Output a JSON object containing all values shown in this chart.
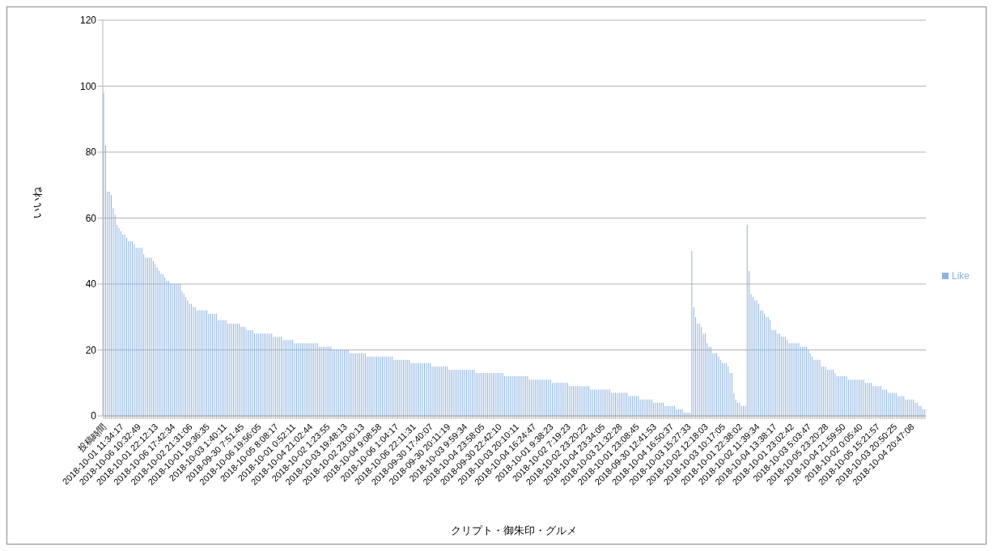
{
  "chart_data": {
    "type": "bar",
    "xlabel": "クリプト・御朱印・グルメ",
    "ylabel": "いいね",
    "legend": "right",
    "grid": "y",
    "ylim": [
      0,
      120
    ],
    "yticks": [
      0,
      20,
      40,
      60,
      80,
      100,
      120
    ],
    "categories": [
      "投稿時間",
      null,
      null,
      null,
      null,
      null,
      null,
      null,
      null,
      "2018-10-01 11:34:17",
      null,
      null,
      null,
      null,
      null,
      null,
      null,
      null,
      "2018-10-06 10:32:49",
      null,
      null,
      null,
      null,
      null,
      null,
      null,
      null,
      "2018-10-01 22:12:13",
      null,
      null,
      null,
      null,
      null,
      null,
      null,
      null,
      "2018-10-06 17:42:34",
      null,
      null,
      null,
      null,
      null,
      null,
      null,
      null,
      "2018-10-02 21:31:06",
      null,
      null,
      null,
      null,
      null,
      null,
      null,
      null,
      "2018-10-01 19:36:35",
      null,
      null,
      null,
      null,
      null,
      null,
      null,
      null,
      "2018-10-03 1:40:11",
      null,
      null,
      null,
      null,
      null,
      null,
      null,
      null,
      "2018-09-30 7:51:45",
      null,
      null,
      null,
      null,
      null,
      null,
      null,
      null,
      "2018-10-06 19:56:05",
      null,
      null,
      null,
      null,
      null,
      null,
      null,
      null,
      "2018-10-05 8:08:17",
      null,
      null,
      null,
      null,
      null,
      null,
      null,
      null,
      "2018-10-01 0:52:11",
      null,
      null,
      null,
      null,
      null,
      null,
      null,
      null,
      "2018-10-04 21:02:44",
      null,
      null,
      null,
      null,
      null,
      null,
      null,
      null,
      "2018-10-02 1:23:55",
      null,
      null,
      null,
      null,
      null,
      null,
      null,
      null,
      "2018-10-03 19:48:13",
      null,
      null,
      null,
      null,
      null,
      null,
      null,
      null,
      "2018-10-02 23:00:13",
      null,
      null,
      null,
      null,
      null,
      null,
      null,
      null,
      "2018-10-04 9:08:58",
      null,
      null,
      null,
      null,
      null,
      null,
      null,
      null,
      "2018-10-06 1:04:17",
      null,
      null,
      null,
      null,
      null,
      null,
      null,
      null,
      "2018-10-06 22:11:31",
      null,
      null,
      null,
      null,
      null,
      null,
      null,
      null,
      "2018-09-30 17:40:07",
      null,
      null,
      null,
      null,
      null,
      null,
      null,
      null,
      "2018-09-30 20:11:19",
      null,
      null,
      null,
      null,
      null,
      null,
      null,
      null,
      "2018-10-03 9:59:34",
      null,
      null,
      null,
      null,
      null,
      null,
      null,
      null,
      "2018-10-04 23:58:05",
      null,
      null,
      null,
      null,
      null,
      null,
      null,
      null,
      "2018-09-30 22:42:10",
      null,
      null,
      null,
      null,
      null,
      null,
      null,
      null,
      "2018-10-03 20:10:11",
      null,
      null,
      null,
      null,
      null,
      null,
      null,
      null,
      "2018-10-04 16:24:47",
      null,
      null,
      null,
      null,
      null,
      null,
      null,
      null,
      "2018-10-01 9:38:23",
      null,
      null,
      null,
      null,
      null,
      null,
      null,
      null,
      "2018-10-02 7:19:23",
      null,
      null,
      null,
      null,
      null,
      null,
      null,
      null,
      "2018-10-02 23:20:22",
      null,
      null,
      null,
      null,
      null,
      null,
      null,
      null,
      "2018-10-04 23:34:05",
      null,
      null,
      null,
      null,
      null,
      null,
      null,
      null,
      "2018-10-03 21:32:28",
      null,
      null,
      null,
      null,
      null,
      null,
      null,
      null,
      "2018-10-01 23:08:45",
      null,
      null,
      null,
      null,
      null,
      null,
      null,
      null,
      "2018-09-30 12:41:53",
      null,
      null,
      null,
      null,
      null,
      null,
      null,
      null,
      "2018-10-04 16:50:37",
      null,
      null,
      null,
      null,
      null,
      null,
      null,
      null,
      "2018-10-03 15:27:33",
      null,
      null,
      null,
      null,
      null,
      null,
      null,
      null,
      "2018-10-02 12:18:03",
      null,
      null,
      null,
      null,
      null,
      null,
      null,
      null,
      "2018-10-03 10:17:05",
      null,
      null,
      null,
      null,
      null,
      null,
      null,
      null,
      "2018-10-01 22:38:02",
      null,
      null,
      null,
      null,
      null,
      null,
      null,
      null,
      "2018-10-02 11:39:34",
      null,
      null,
      null,
      null,
      null,
      null,
      null,
      null,
      "2018-10-04 13:38:17",
      null,
      null,
      null,
      null,
      null,
      null,
      null,
      null,
      "2018-10-01 23:02:42",
      null,
      null,
      null,
      null,
      null,
      null,
      null,
      null,
      "2018-10-03 5:03:47",
      null,
      null,
      null,
      null,
      null,
      null,
      null,
      null,
      "2018-10-05 23:20:28",
      null,
      null,
      null,
      null,
      null,
      null,
      null,
      null,
      "2018-10-04 21:59:50",
      null,
      null,
      null,
      null,
      null,
      null,
      null,
      null,
      "2018-10-02 0:05:40",
      null,
      null,
      null,
      null,
      null,
      null,
      null,
      null,
      "2018-10-05 15:21:57",
      null,
      null,
      null,
      null,
      null,
      null,
      null,
      null,
      "2018-10-03 20:50:25",
      null,
      null,
      null,
      null,
      null,
      null,
      null,
      null,
      "2018-10-04 20:47:08",
      null,
      null,
      null,
      null,
      null,
      null,
      null
    ],
    "series": [
      {
        "name": "Like",
        "color": "#8db3e2",
        "values": [
          98,
          82,
          68,
          68,
          67,
          63,
          61,
          58,
          57,
          56,
          55,
          55,
          54,
          53,
          53,
          53,
          52,
          51,
          51,
          51,
          51,
          49,
          48,
          48,
          48,
          48,
          47,
          46,
          45,
          44,
          43,
          43,
          42,
          41,
          41,
          40,
          40,
          40,
          40,
          40,
          40,
          38,
          37,
          36,
          35,
          34,
          34,
          33,
          33,
          32,
          32,
          32,
          32,
          32,
          32,
          31,
          31,
          31,
          31,
          31,
          29,
          29,
          29,
          29,
          29,
          28,
          28,
          28,
          28,
          28,
          28,
          28,
          27,
          27,
          27,
          26,
          26,
          26,
          26,
          25,
          25,
          25,
          25,
          25,
          25,
          25,
          25,
          25,
          25,
          24,
          24,
          24,
          24,
          24,
          23,
          23,
          23,
          23,
          23,
          23,
          22,
          22,
          22,
          22,
          22,
          22,
          22,
          22,
          22,
          22,
          22,
          22,
          22,
          21,
          21,
          21,
          21,
          21,
          21,
          21,
          20,
          20,
          20,
          20,
          20,
          20,
          20,
          20,
          20,
          19,
          19,
          19,
          19,
          19,
          19,
          19,
          19,
          19,
          18,
          18,
          18,
          18,
          18,
          18,
          18,
          18,
          18,
          18,
          18,
          18,
          18,
          18,
          17,
          17,
          17,
          17,
          17,
          17,
          17,
          17,
          17,
          16,
          16,
          16,
          16,
          16,
          16,
          16,
          16,
          16,
          16,
          16,
          15,
          15,
          15,
          15,
          15,
          15,
          15,
          15,
          15,
          14,
          14,
          14,
          14,
          14,
          14,
          14,
          14,
          14,
          14,
          14,
          14,
          14,
          14,
          13,
          13,
          13,
          13,
          13,
          13,
          13,
          13,
          13,
          13,
          13,
          13,
          13,
          13,
          13,
          12,
          12,
          12,
          12,
          12,
          12,
          12,
          12,
          12,
          12,
          12,
          12,
          12,
          11,
          11,
          11,
          11,
          11,
          11,
          11,
          11,
          11,
          11,
          11,
          11,
          10,
          10,
          10,
          10,
          10,
          10,
          10,
          10,
          10,
          9,
          9,
          9,
          9,
          9,
          9,
          9,
          9,
          9,
          9,
          9,
          8,
          8,
          8,
          8,
          8,
          8,
          8,
          8,
          8,
          8,
          8,
          7,
          7,
          7,
          7,
          7,
          7,
          7,
          7,
          7,
          6,
          6,
          6,
          6,
          6,
          6,
          5,
          5,
          5,
          5,
          5,
          5,
          5,
          4,
          4,
          4,
          4,
          4,
          4,
          3,
          3,
          3,
          3,
          3,
          3,
          2,
          2,
          2,
          2,
          1,
          1,
          1,
          1,
          50,
          33,
          30,
          28,
          28,
          27,
          25,
          25,
          22,
          21,
          21,
          19,
          19,
          19,
          18,
          17,
          16,
          16,
          16,
          15,
          13,
          13,
          7,
          5,
          4,
          4,
          3,
          3,
          3,
          58,
          44,
          37,
          36,
          35,
          35,
          34,
          32,
          32,
          31,
          30,
          30,
          29,
          26,
          26,
          26,
          25,
          25,
          24,
          24,
          24,
          23,
          22,
          22,
          22,
          22,
          22,
          22,
          21,
          21,
          21,
          21,
          20,
          19,
          18,
          17,
          17,
          17,
          17,
          15,
          15,
          15,
          14,
          14,
          14,
          14,
          13,
          12,
          12,
          12,
          12,
          12,
          12,
          11,
          11,
          11,
          11,
          11,
          11,
          11,
          11,
          11,
          10,
          10,
          10,
          10,
          9,
          9,
          9,
          9,
          9,
          8,
          8,
          8,
          7,
          7,
          7,
          7,
          7,
          6,
          6,
          6,
          6,
          5,
          5,
          5,
          5,
          5,
          4,
          4,
          3,
          3,
          2,
          2
        ]
      }
    ]
  }
}
